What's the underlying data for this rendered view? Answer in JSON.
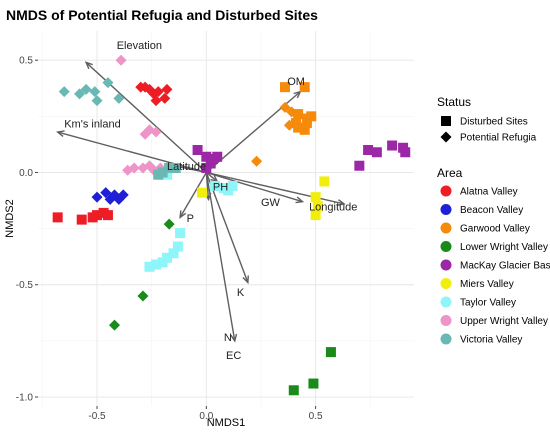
{
  "chart_data": {
    "type": "scatter",
    "title": "NMDS of Potential Refugia and Disturbed Sites",
    "xlabel": "NMDS1",
    "ylabel": "NMDS2",
    "xlim": [
      -0.77,
      0.95
    ],
    "ylim": [
      -1.04,
      0.63
    ],
    "x_ticks": [
      -0.5,
      0.0,
      0.5
    ],
    "x_tick_labels": [
      "-0.5",
      "0.0",
      "0.5"
    ],
    "y_ticks": [
      -1.0,
      -0.5,
      0.0,
      0.5
    ],
    "y_tick_labels": [
      "-1.0",
      "-0.5",
      "0.0",
      "0.5"
    ],
    "grid": true,
    "legend_placement": "right",
    "status_legend": {
      "title": "Status",
      "entries": [
        {
          "label": "Disturbed Sites",
          "shape": "square"
        },
        {
          "label": "Potential Refugia",
          "shape": "diamond"
        }
      ]
    },
    "area_legend": {
      "title": "Area",
      "entries": [
        {
          "label": "Alatna Valley",
          "color": "#ee1c25"
        },
        {
          "label": "Beacon Valley",
          "color": "#1f1fd6"
        },
        {
          "label": "Garwood Valley",
          "color": "#f58a0b"
        },
        {
          "label": "Lower Wright Valley",
          "color": "#1a8a1a"
        },
        {
          "label": "MacKay Glacier Basin",
          "color": "#9b27a6"
        },
        {
          "label": "Miers Valley",
          "color": "#f2ee0c"
        },
        {
          "label": "Taylor Valley",
          "color": "#8ef5f8"
        },
        {
          "label": "Upper Wright Valley",
          "color": "#ee94c8"
        },
        {
          "label": "Victoria Valley",
          "color": "#6ab8b4"
        }
      ]
    },
    "vectors": [
      {
        "label": "Elevation",
        "x": -0.55,
        "y": 0.49,
        "label_x": -0.41,
        "label_y": 0.55
      },
      {
        "label": "OM",
        "x": 0.43,
        "y": 0.36,
        "label_x": 0.37,
        "label_y": 0.39
      },
      {
        "label": "Km's inland",
        "x": -0.68,
        "y": 0.18,
        "label_x": -0.65,
        "label_y": 0.2
      },
      {
        "label": "Latitude",
        "x": -0.15,
        "y": 0.03,
        "label_x": -0.18,
        "label_y": 0.01
      },
      {
        "label": "PH",
        "x": 0.05,
        "y": -0.04,
        "label_x": 0.03,
        "label_y": -0.08
      },
      {
        "label": "P",
        "x": -0.12,
        "y": -0.2,
        "label_x": -0.09,
        "label_y": -0.22
      },
      {
        "label": "GW",
        "x": 0.44,
        "y": -0.13,
        "label_x": 0.25,
        "label_y": -0.15
      },
      {
        "label": "Longitude",
        "x": 0.63,
        "y": -0.14,
        "label_x": 0.47,
        "label_y": -0.17
      },
      {
        "label": "K",
        "x": 0.19,
        "y": -0.49,
        "label_x": 0.14,
        "label_y": -0.55
      },
      {
        "label": "N",
        "x": 0.13,
        "y": -0.75,
        "label_x": 0.08,
        "label_y": -0.75
      },
      {
        "label": "EC",
        "x": 0.01,
        "y": -0.12,
        "label_x": 0.09,
        "label_y": -0.83
      }
    ],
    "series": [
      {
        "area_index": 0,
        "shape": "square",
        "points": [
          [
            -0.68,
            -0.2
          ],
          [
            -0.57,
            -0.21
          ],
          [
            -0.52,
            -0.2
          ],
          [
            -0.5,
            -0.19
          ],
          [
            -0.47,
            -0.18
          ],
          [
            -0.45,
            -0.19
          ]
        ]
      },
      {
        "area_index": 0,
        "shape": "diamond",
        "points": [
          [
            -0.3,
            0.38
          ],
          [
            -0.28,
            0.38
          ],
          [
            -0.26,
            0.37
          ],
          [
            -0.24,
            0.35
          ],
          [
            -0.22,
            0.36
          ],
          [
            -0.19,
            0.33
          ],
          [
            -0.18,
            0.37
          ],
          [
            -0.23,
            0.32
          ]
        ]
      },
      {
        "area_index": 1,
        "shape": "diamond",
        "points": [
          [
            -0.5,
            -0.11
          ],
          [
            -0.46,
            -0.09
          ],
          [
            -0.44,
            -0.12
          ],
          [
            -0.42,
            -0.1
          ],
          [
            -0.4,
            -0.12
          ],
          [
            -0.38,
            -0.1
          ]
        ]
      },
      {
        "area_index": 2,
        "shape": "square",
        "points": [
          [
            0.36,
            0.38
          ],
          [
            0.45,
            0.38
          ],
          [
            0.42,
            0.26
          ],
          [
            0.46,
            0.24
          ],
          [
            0.48,
            0.25
          ],
          [
            0.42,
            0.2
          ],
          [
            0.45,
            0.19
          ],
          [
            0.46,
            0.22
          ],
          [
            0.41,
            0.22
          ]
        ]
      },
      {
        "area_index": 2,
        "shape": "diamond",
        "points": [
          [
            0.36,
            0.29
          ],
          [
            0.39,
            0.27
          ],
          [
            0.38,
            0.21
          ],
          [
            0.23,
            0.05
          ]
        ]
      },
      {
        "area_index": 3,
        "shape": "square",
        "points": [
          [
            0.4,
            -0.97
          ],
          [
            0.49,
            -0.94
          ],
          [
            0.57,
            -0.8
          ]
        ]
      },
      {
        "area_index": 3,
        "shape": "diamond",
        "points": [
          [
            -0.17,
            -0.23
          ],
          [
            -0.29,
            -0.55
          ],
          [
            -0.42,
            -0.68
          ]
        ]
      },
      {
        "area_index": 4,
        "shape": "square",
        "points": [
          [
            -0.04,
            0.1
          ],
          [
            0.0,
            0.07
          ],
          [
            0.03,
            0.06
          ],
          [
            0.05,
            0.07
          ],
          [
            0.02,
            0.04
          ],
          [
            0.0,
            0.02
          ],
          [
            0.7,
            0.03
          ],
          [
            0.74,
            0.1
          ],
          [
            0.78,
            0.09
          ],
          [
            0.85,
            0.12
          ],
          [
            0.9,
            0.11
          ],
          [
            0.91,
            0.09
          ]
        ]
      },
      {
        "area_index": 5,
        "shape": "square",
        "points": [
          [
            0.54,
            -0.04
          ],
          [
            0.5,
            -0.11
          ],
          [
            0.51,
            -0.15
          ],
          [
            0.5,
            -0.19
          ],
          [
            -0.02,
            -0.09
          ]
        ]
      },
      {
        "area_index": 6,
        "shape": "square",
        "points": [
          [
            -0.18,
            -0.01
          ],
          [
            0.08,
            -0.07
          ],
          [
            0.1,
            -0.08
          ],
          [
            0.12,
            -0.06
          ],
          [
            0.04,
            -0.06
          ],
          [
            -0.12,
            -0.27
          ],
          [
            -0.13,
            -0.33
          ],
          [
            -0.15,
            -0.36
          ],
          [
            -0.18,
            -0.38
          ],
          [
            -0.2,
            -0.4
          ],
          [
            -0.23,
            -0.41
          ],
          [
            -0.26,
            -0.42
          ]
        ]
      },
      {
        "area_index": 7,
        "shape": "diamond",
        "points": [
          [
            -0.39,
            0.5
          ],
          [
            -0.26,
            0.19
          ],
          [
            -0.23,
            0.18
          ],
          [
            -0.28,
            0.17
          ],
          [
            -0.36,
            0.01
          ],
          [
            -0.33,
            0.02
          ],
          [
            -0.29,
            0.02
          ],
          [
            -0.26,
            0.03
          ],
          [
            -0.24,
            0.01
          ],
          [
            -0.21,
            0.02
          ]
        ]
      },
      {
        "area_index": 8,
        "shape": "diamond",
        "points": [
          [
            -0.65,
            0.36
          ],
          [
            -0.58,
            0.35
          ],
          [
            -0.55,
            0.37
          ],
          [
            -0.51,
            0.36
          ],
          [
            -0.5,
            0.32
          ],
          [
            -0.45,
            0.4
          ],
          [
            -0.4,
            0.33
          ]
        ]
      },
      {
        "area_index": 8,
        "shape": "square",
        "points": [
          [
            -0.22,
            -0.01
          ],
          [
            -0.2,
            0.0
          ],
          [
            -0.17,
            0.02
          ],
          [
            -0.14,
            0.02
          ]
        ]
      }
    ]
  }
}
